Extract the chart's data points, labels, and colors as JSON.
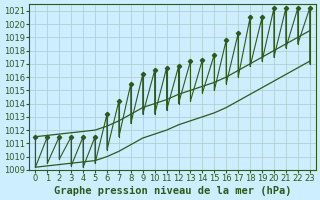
{
  "title": "Graphe pression niveau de la mer (hPa)",
  "background_color": "#cceeff",
  "grid_color": "#aacccc",
  "line_color": "#2d5a1b",
  "xlim": [
    -0.5,
    23.5
  ],
  "ylim": [
    1009,
    1021.5
  ],
  "yticks": [
    1009,
    1010,
    1011,
    1012,
    1013,
    1014,
    1015,
    1016,
    1017,
    1018,
    1019,
    1020,
    1021
  ],
  "xticks": [
    0,
    1,
    2,
    3,
    4,
    5,
    6,
    7,
    8,
    9,
    10,
    11,
    12,
    13,
    14,
    15,
    16,
    17,
    18,
    19,
    20,
    21,
    22,
    23
  ],
  "hours": [
    0,
    1,
    2,
    3,
    4,
    5,
    6,
    7,
    8,
    9,
    10,
    11,
    12,
    13,
    14,
    15,
    16,
    17,
    18,
    19,
    20,
    21,
    22,
    23
  ],
  "pressure_peak": [
    1011.5,
    1011.5,
    1011.5,
    1011.5,
    1011.5,
    1011.5,
    1013.2,
    1014.2,
    1015.5,
    1016.2,
    1016.5,
    1016.7,
    1016.8,
    1017.2,
    1017.3,
    1017.7,
    1018.8,
    1019.3,
    1020.5,
    1020.5,
    1021.2,
    1021.2,
    1021.2,
    1021.2
  ],
  "pressure_valley": [
    1009.2,
    1009.5,
    1009.8,
    1009.3,
    1009.2,
    1009.5,
    1010.5,
    1011.5,
    1012.5,
    1013.2,
    1013.2,
    1013.5,
    1014.0,
    1014.2,
    1014.8,
    1015.0,
    1015.5,
    1016.0,
    1016.8,
    1017.2,
    1017.5,
    1018.2,
    1018.5,
    1017.0
  ],
  "trend_upper": [
    1011.5,
    1011.6,
    1011.7,
    1011.8,
    1011.9,
    1012.0,
    1012.3,
    1012.7,
    1013.2,
    1013.7,
    1014.0,
    1014.3,
    1014.7,
    1015.0,
    1015.3,
    1015.6,
    1016.0,
    1016.5,
    1017.0,
    1017.5,
    1018.0,
    1018.5,
    1019.0,
    1019.5
  ],
  "trend_lower": [
    1009.2,
    1009.3,
    1009.4,
    1009.5,
    1009.6,
    1009.7,
    1010.0,
    1010.4,
    1010.9,
    1011.4,
    1011.7,
    1012.0,
    1012.4,
    1012.7,
    1013.0,
    1013.3,
    1013.7,
    1014.2,
    1014.7,
    1015.2,
    1015.7,
    1016.2,
    1016.7,
    1017.2
  ],
  "title_fontsize": 7.5,
  "tick_fontsize": 6
}
